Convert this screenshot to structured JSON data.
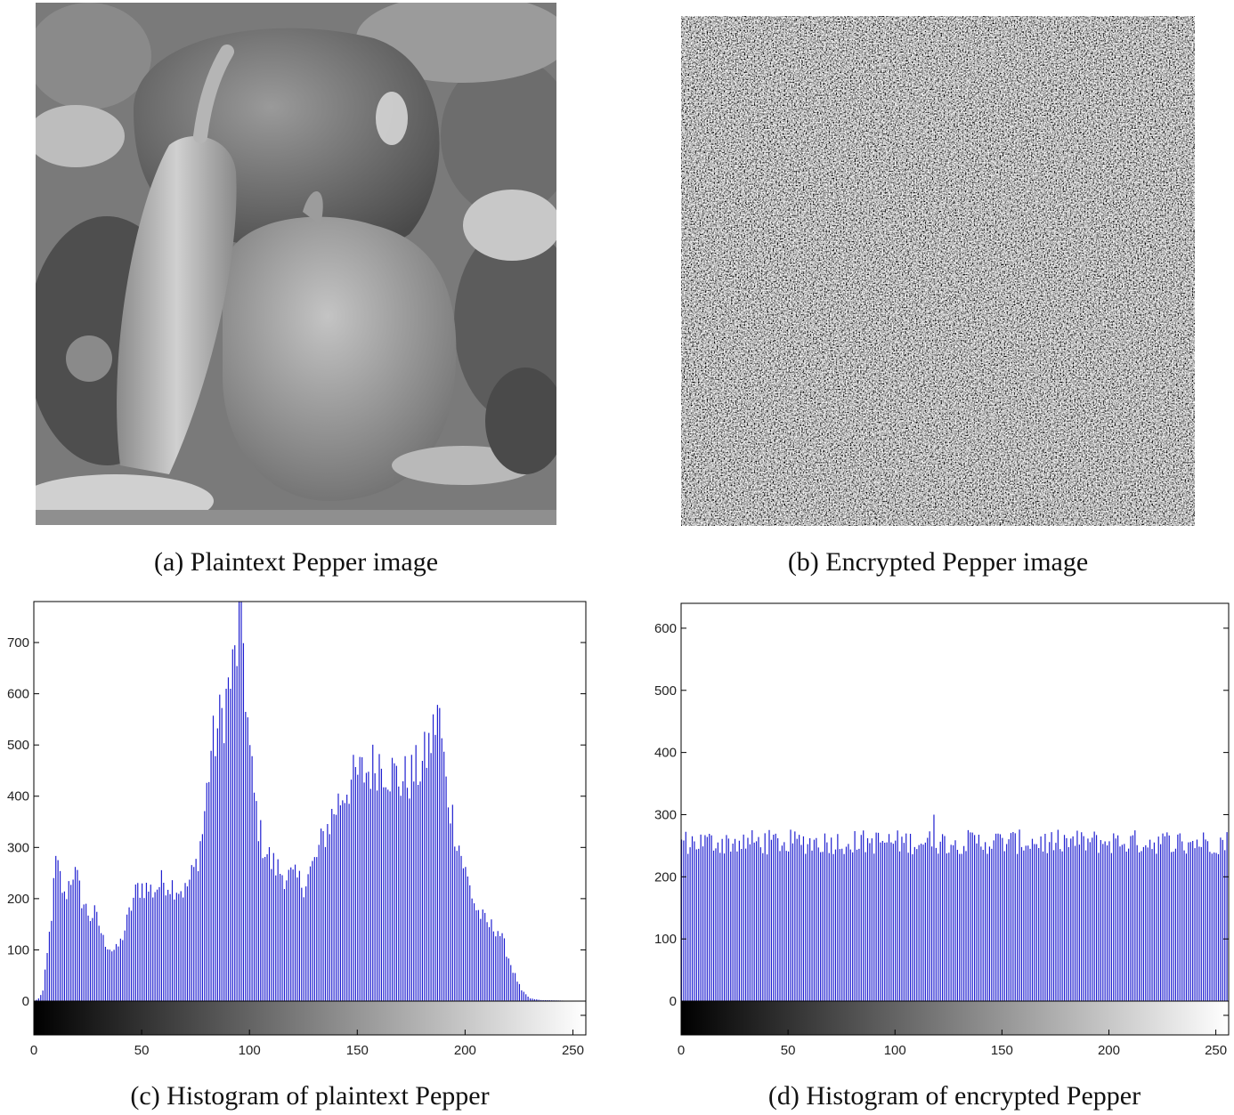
{
  "captions": {
    "a": "(a) Plaintext Pepper image",
    "b": "(b) Encrypted Pepper image",
    "c": "(c) Histogram of plaintext Pepper",
    "d": "(d) Histogram of encrypted Pepper"
  },
  "colors": {
    "bar": "#1f1fd0",
    "axis": "#000000"
  },
  "chart_data": [
    {
      "type": "bar",
      "title": "",
      "xlabel": "",
      "ylabel": "",
      "xlim": [
        0,
        255
      ],
      "ylim": [
        0,
        780
      ],
      "xticks": [
        0,
        50,
        100,
        150,
        200,
        250
      ],
      "yticks": [
        0,
        100,
        200,
        300,
        400,
        500,
        600,
        700
      ],
      "colorbar": "grayscale 0-255",
      "keypoints": [
        [
          0,
          0
        ],
        [
          2,
          5
        ],
        [
          4,
          20
        ],
        [
          6,
          90
        ],
        [
          8,
          170
        ],
        [
          10,
          270
        ],
        [
          12,
          240
        ],
        [
          14,
          200
        ],
        [
          16,
          230
        ],
        [
          18,
          255
        ],
        [
          20,
          235
        ],
        [
          22,
          200
        ],
        [
          24,
          180
        ],
        [
          26,
          165
        ],
        [
          28,
          170
        ],
        [
          30,
          150
        ],
        [
          32,
          120
        ],
        [
          34,
          110
        ],
        [
          36,
          100
        ],
        [
          38,
          100
        ],
        [
          40,
          115
        ],
        [
          42,
          140
        ],
        [
          44,
          170
        ],
        [
          46,
          200
        ],
        [
          48,
          220
        ],
        [
          50,
          225
        ],
        [
          55,
          215
        ],
        [
          60,
          235
        ],
        [
          65,
          225
        ],
        [
          70,
          215
        ],
        [
          75,
          265
        ],
        [
          78,
          330
        ],
        [
          80,
          410
        ],
        [
          82,
          490
        ],
        [
          84,
          515
        ],
        [
          86,
          545
        ],
        [
          88,
          570
        ],
        [
          90,
          610
        ],
        [
          92,
          640
        ],
        [
          94,
          690
        ],
        [
          95,
          730
        ],
        [
          96,
          775
        ],
        [
          97,
          700
        ],
        [
          98,
          610
        ],
        [
          100,
          480
        ],
        [
          102,
          400
        ],
        [
          105,
          320
        ],
        [
          110,
          270
        ],
        [
          115,
          250
        ],
        [
          120,
          240
        ],
        [
          125,
          230
        ],
        [
          130,
          270
        ],
        [
          135,
          330
        ],
        [
          140,
          380
        ],
        [
          145,
          420
        ],
        [
          150,
          440
        ],
        [
          155,
          450
        ],
        [
          160,
          470
        ],
        [
          165,
          450
        ],
        [
          170,
          430
        ],
        [
          175,
          440
        ],
        [
          180,
          460
        ],
        [
          185,
          520
        ],
        [
          187,
          575
        ],
        [
          189,
          510
        ],
        [
          191,
          420
        ],
        [
          195,
          340
        ],
        [
          200,
          250
        ],
        [
          205,
          180
        ],
        [
          210,
          150
        ],
        [
          215,
          140
        ],
        [
          218,
          110
        ],
        [
          222,
          60
        ],
        [
          226,
          20
        ],
        [
          230,
          5
        ],
        [
          235,
          2
        ],
        [
          255,
          0
        ]
      ]
    },
    {
      "type": "bar",
      "title": "",
      "xlabel": "",
      "ylabel": "",
      "xlim": [
        0,
        255
      ],
      "ylim": [
        0,
        640
      ],
      "xticks": [
        0,
        50,
        100,
        150,
        200,
        250
      ],
      "yticks": [
        0,
        100,
        200,
        300,
        400,
        500,
        600
      ],
      "colorbar": "grayscale 0-255",
      "mean": 256,
      "range": [
        235,
        300
      ]
    }
  ]
}
